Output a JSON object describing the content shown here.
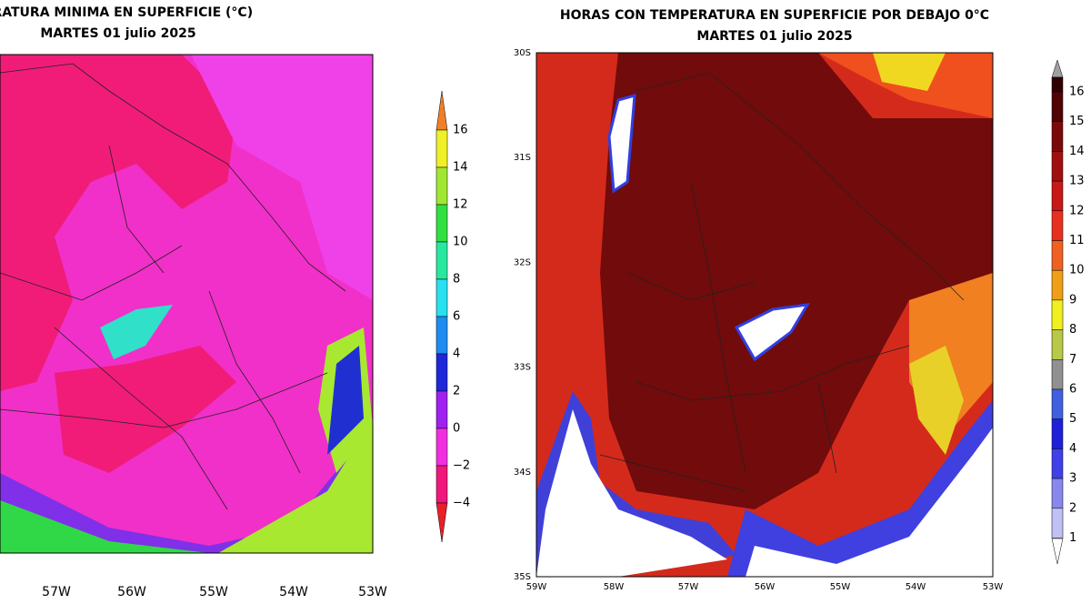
{
  "left_map": {
    "title": "ERATURA MINIMA EN SUPERFICIE (°C)",
    "subtitle": "MARTES 01 julio 2025",
    "x_labels": [
      "57W",
      "56W",
      "55W",
      "54W",
      "53W"
    ],
    "colorbar_labels": [
      "16",
      "14",
      "12",
      "10",
      "8",
      "6",
      "4",
      "2",
      "0",
      "−2",
      "−4"
    ]
  },
  "right_map": {
    "title": "HORAS CON TEMPERATURA EN SUPERFICIE POR DEBAJO 0°C",
    "subtitle": "MARTES 01 julio 2025",
    "x_labels": [
      "59W",
      "58W",
      "57W",
      "56W",
      "55W",
      "54W",
      "53W"
    ],
    "y_labels": [
      "30S",
      "31S",
      "32S",
      "33S",
      "34S",
      "35S"
    ],
    "colorbar_labels": [
      "16",
      "15",
      "14",
      "13",
      "12",
      "11",
      "10",
      "9",
      "8",
      "7",
      "6",
      "5",
      "4",
      "3",
      "2",
      "1"
    ]
  }
}
